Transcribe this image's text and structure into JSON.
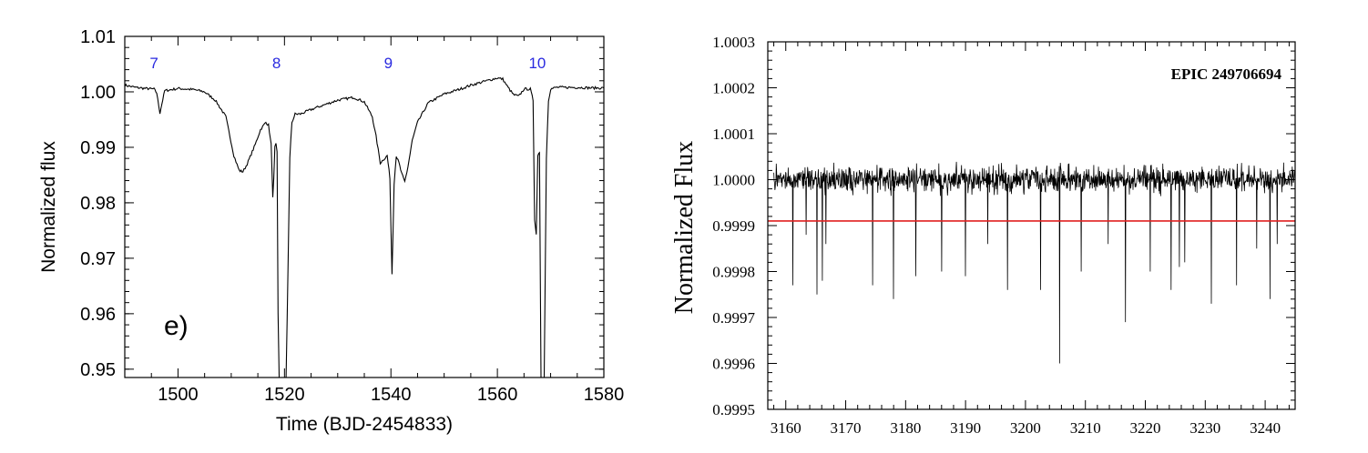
{
  "chart_data": [
    {
      "type": "line",
      "panel_label": "e)",
      "xlabel": "Time (BJD-2454833)",
      "ylabel": "Normalized flux",
      "xlim": [
        1490,
        1580
      ],
      "ylim": [
        0.9485,
        1.01
      ],
      "xticks": [
        1500,
        1520,
        1540,
        1560,
        1580
      ],
      "yticks": [
        "1.01",
        "1.00",
        "0.99",
        "0.98",
        "0.97",
        "0.96",
        "0.95"
      ],
      "grid": false,
      "annotations": [
        {
          "text": "7",
          "x": 1495.5,
          "y": 1.0043
        },
        {
          "text": "8",
          "x": 1518.5,
          "y": 1.0043
        },
        {
          "text": "9",
          "x": 1539.5,
          "y": 1.0043
        },
        {
          "text": "10",
          "x": 1567.5,
          "y": 1.0043
        }
      ],
      "colors": {
        "line": "#000000",
        "annotation": "#2a2ae0"
      },
      "x": [
        1490,
        1492,
        1494,
        1495.5,
        1496,
        1496.6,
        1497.5,
        1500,
        1503,
        1505,
        1507,
        1509,
        1510.5,
        1511.5,
        1512.2,
        1513,
        1514.5,
        1515.5,
        1516.5,
        1517,
        1517.5,
        1517.8,
        1518,
        1518.2,
        1518.4,
        1518.6,
        1518.8,
        1519,
        1519.2,
        1519.5,
        1520,
        1520.3,
        1520.7,
        1521,
        1521.4,
        1522,
        1523,
        1525,
        1527,
        1530,
        1533,
        1535,
        1536.5,
        1537.2,
        1538,
        1538.8,
        1539.3,
        1539.8,
        1540.2,
        1540.6,
        1541,
        1541.5,
        1542,
        1542.6,
        1543.2,
        1544,
        1545,
        1547,
        1550,
        1553,
        1555,
        1558,
        1560,
        1561,
        1562,
        1563,
        1564,
        1565,
        1566.2,
        1566.7,
        1567,
        1567.3,
        1567.6,
        1567.9,
        1568.2,
        1568.5,
        1568.8,
        1569.2,
        1569.6,
        1570,
        1571,
        1573,
        1575,
        1578,
        1580
      ],
      "y": [
        1.0012,
        1.0008,
        1.0006,
        1.0005,
        0.9998,
        0.9962,
        1.0002,
        1.0006,
        1.0004,
        1.0,
        0.9985,
        0.9955,
        0.9885,
        0.9858,
        0.9856,
        0.987,
        0.9905,
        0.9932,
        0.9945,
        0.994,
        0.9905,
        0.9812,
        0.9843,
        0.99,
        0.9905,
        0.989,
        0.96,
        0.9485,
        0.9485,
        0.9485,
        0.9485,
        0.9485,
        0.97,
        0.988,
        0.9945,
        0.996,
        0.996,
        0.9968,
        0.9975,
        0.9985,
        0.999,
        0.9982,
        0.9955,
        0.992,
        0.9872,
        0.988,
        0.9885,
        0.9845,
        0.9672,
        0.9835,
        0.9885,
        0.9872,
        0.9853,
        0.9838,
        0.9865,
        0.9912,
        0.9945,
        0.998,
        0.9996,
        1.0005,
        1.0012,
        1.002,
        1.0025,
        1.0023,
        1.0008,
        0.9995,
        0.9992,
        1.0005,
        1.0005,
        0.9985,
        0.977,
        0.9745,
        0.9885,
        0.9892,
        0.9485,
        0.9485,
        0.9485,
        0.988,
        0.9985,
        1.0005,
        1.0008,
        1.0008,
        1.0008,
        1.0007,
        1.0007
      ]
    },
    {
      "type": "line",
      "xlabel": "",
      "ylabel": "Normalized Flux",
      "title": "EPIC 249706694",
      "xlim": [
        3157,
        3245
      ],
      "ylim": [
        0.9995,
        1.0003
      ],
      "xticks": [
        3160,
        3170,
        3180,
        3190,
        3200,
        3210,
        3220,
        3230,
        3240
      ],
      "yticks": [
        "1.0003",
        "1.0002",
        "1.0001",
        "1.0000",
        "0.9999",
        "0.9998",
        "0.9997",
        "0.9996",
        "0.9995"
      ],
      "grid": false,
      "noise": {
        "mean": 1.0,
        "scatter": 2.5e-05,
        "x_start": 3158,
        "x_end": 3245
      },
      "threshold_line": {
        "y": 0.99991,
        "color": "#e02020"
      },
      "dip_times": [
        3161.2,
        3163.4,
        3165.2,
        3166.1,
        3166.7,
        3174.5,
        3178.0,
        3181.7,
        3186.0,
        3190.0,
        3193.7,
        3197.0,
        3202.5,
        3205.7,
        3209.3,
        3213.8,
        3216.7,
        3220.8,
        3224.3,
        3225.7,
        3226.6,
        3231.0,
        3235.2,
        3238.6,
        3240.8,
        3242.0
      ],
      "dip_depths": [
        0.99977,
        0.99988,
        0.99975,
        0.99978,
        0.99986,
        0.99977,
        0.99974,
        0.99979,
        0.9998,
        0.99979,
        0.99986,
        0.99976,
        0.99976,
        0.9996,
        0.9998,
        0.99986,
        0.99969,
        0.9998,
        0.99976,
        0.99981,
        0.99982,
        0.99973,
        0.99977,
        0.99985,
        0.99974,
        0.99986
      ],
      "colors": {
        "line": "#000000"
      }
    }
  ]
}
